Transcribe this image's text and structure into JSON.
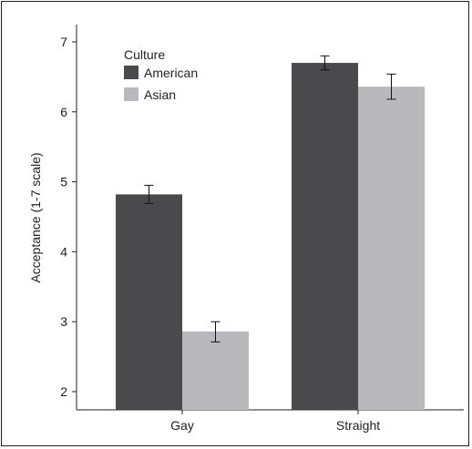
{
  "chart_data": {
    "type": "bar",
    "categories": [
      "Gay",
      "Straight"
    ],
    "series": [
      {
        "name": "American",
        "color": "#4a4a4c",
        "values": [
          4.82,
          6.7
        ],
        "error_low": [
          4.69,
          6.6
        ],
        "error_high": [
          4.95,
          6.8
        ]
      },
      {
        "name": "Asian",
        "color": "#b9b9bb",
        "values": [
          2.86,
          6.36
        ],
        "error_low": [
          2.71,
          6.18
        ],
        "error_high": [
          3.0,
          6.54
        ]
      }
    ],
    "title": "",
    "xlabel": "",
    "ylabel": "Acceptance (1-7 scale)",
    "ylim": [
      1.8,
      7.1
    ],
    "yticks": [
      2,
      3,
      4,
      5,
      6,
      7
    ],
    "ytick_labels": [
      "2",
      "3",
      "4",
      "5",
      "6",
      "7"
    ],
    "legend_title": "Culture",
    "legend_position": "top-left",
    "grid": false
  }
}
